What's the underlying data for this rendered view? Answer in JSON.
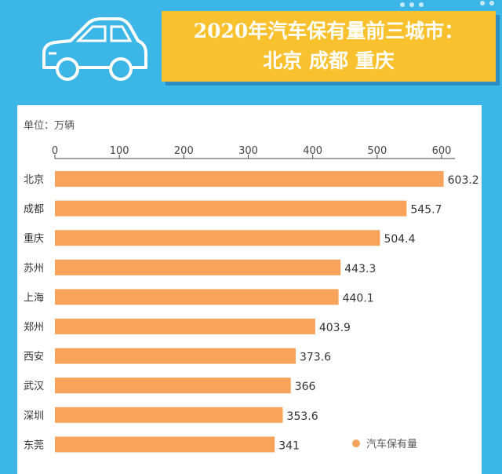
{
  "header": {
    "title_line1": "2020年汽车保有量前三城市：",
    "title_line2": "北京 成都 重庆"
  },
  "unit_label": "单位：万辆",
  "colors": {
    "bar": "#f7a35c",
    "background": "#3cb6e6",
    "title_bg": "#f8c12d"
  },
  "chart_data": {
    "type": "bar",
    "orientation": "horizontal",
    "categories": [
      "北京",
      "成都",
      "重庆",
      "苏州",
      "上海",
      "郑州",
      "西安",
      "武汉",
      "深圳",
      "东莞"
    ],
    "values": [
      603.2,
      545.7,
      504.4,
      443.3,
      440.1,
      403.9,
      373.6,
      366,
      353.6,
      341
    ],
    "value_labels": [
      "603.2",
      "545.7",
      "504.4",
      "443.3",
      "440.1",
      "403.9",
      "373.6",
      "366",
      "353.6",
      "341"
    ],
    "ticks": [
      "0",
      "100",
      "200",
      "300",
      "400",
      "500",
      "600"
    ],
    "xlim": [
      0,
      620
    ],
    "legend": "汽车保有量",
    "legend_position": "bottom-right"
  }
}
